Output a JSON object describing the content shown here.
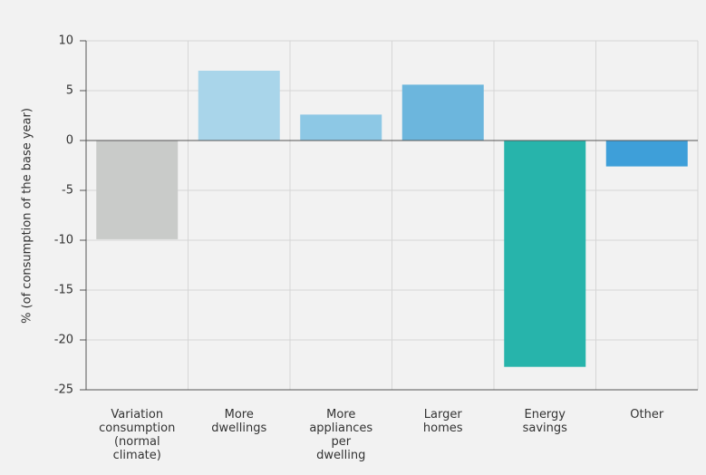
{
  "chart_data": {
    "type": "bar",
    "y_label": "% (of consumption of the base year)",
    "categories": [
      "Variation\nconsumption\n(normal\nclimate)",
      "More\ndwellings",
      "More\nappliances\nper\ndwelling",
      "Larger\nhomes",
      "Energy\nsavings",
      "Other"
    ],
    "values": [
      -9.9,
      7.0,
      2.6,
      5.6,
      -22.7,
      -2.6
    ],
    "colors": [
      "#c9cbc9",
      "#a9d5ea",
      "#8dc8e5",
      "#6cb6dd",
      "#27b4ab",
      "#3e9fd9"
    ],
    "ylim": [
      -25,
      10
    ],
    "yticks": [
      -25,
      -20,
      -15,
      -10,
      -5,
      0,
      5,
      10
    ],
    "grid": true
  }
}
